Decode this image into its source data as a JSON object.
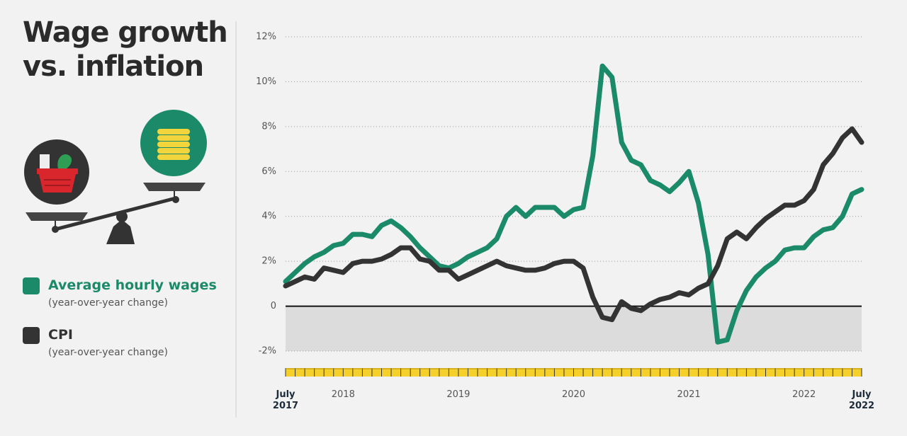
{
  "chart_data": {
    "type": "line",
    "title": "Wage growth vs. inflation",
    "categories": [
      "July 2017",
      null,
      null,
      null,
      null,
      null,
      "2018",
      null,
      null,
      null,
      null,
      null,
      null,
      null,
      null,
      null,
      null,
      null,
      "2019",
      null,
      null,
      null,
      null,
      null,
      null,
      null,
      null,
      null,
      null,
      null,
      "2020",
      null,
      null,
      null,
      null,
      null,
      null,
      null,
      null,
      null,
      null,
      null,
      "2021",
      null,
      null,
      null,
      null,
      null,
      null,
      null,
      null,
      null,
      null,
      null,
      "2022",
      null,
      null,
      null,
      null,
      null,
      "July 2022"
    ],
    "series": [
      {
        "name": "Average hourly wages",
        "description": "(year-over-year change)",
        "color": "#1b8a68",
        "values": [
          1.1,
          1.5,
          1.9,
          2.2,
          2.4,
          2.7,
          2.8,
          3.2,
          3.2,
          3.1,
          3.6,
          3.8,
          3.5,
          3.1,
          2.6,
          2.2,
          1.8,
          1.7,
          1.9,
          2.2,
          2.4,
          2.6,
          3.0,
          4.0,
          4.4,
          4.0,
          4.4,
          4.4,
          4.4,
          4.0,
          4.3,
          4.4,
          6.7,
          10.7,
          10.2,
          7.3,
          6.5,
          6.3,
          5.6,
          5.4,
          5.1,
          5.5,
          6.0,
          4.6,
          2.3,
          -1.6,
          -1.5,
          -0.2,
          0.7,
          1.3,
          1.7,
          2.0,
          2.5,
          2.6,
          2.6,
          3.1,
          3.4,
          3.5,
          4.0,
          5.0,
          5.2
        ]
      },
      {
        "name": "CPI",
        "description": "(year-over-year change)",
        "color": "#333333",
        "values": [
          0.9,
          1.1,
          1.3,
          1.2,
          1.7,
          1.6,
          1.5,
          1.9,
          2.0,
          2.0,
          2.1,
          2.3,
          2.6,
          2.6,
          2.1,
          2.0,
          1.6,
          1.6,
          1.2,
          1.4,
          1.6,
          1.8,
          2.0,
          1.8,
          1.7,
          1.6,
          1.6,
          1.7,
          1.9,
          2.0,
          2.0,
          1.7,
          0.4,
          -0.5,
          -0.6,
          0.2,
          -0.1,
          -0.2,
          0.1,
          0.3,
          0.4,
          0.6,
          0.5,
          0.8,
          1.0,
          1.8,
          3.0,
          3.3,
          3.0,
          3.5,
          3.9,
          4.2,
          4.5,
          4.5,
          4.7,
          5.2,
          6.3,
          6.8,
          7.5,
          7.9,
          7.3
        ]
      }
    ],
    "ylim": [
      -2,
      12
    ],
    "yticks": [
      {
        "value": -2,
        "label": "-2%"
      },
      0,
      {
        "value": 2,
        "label": "2%"
      },
      {
        "value": 4,
        "label": "4%"
      },
      {
        "value": 6,
        "label": "6%"
      },
      {
        "value": 8,
        "label": "8%"
      },
      {
        "value": 10,
        "label": "10%"
      },
      {
        "value": 12,
        "label": "12%"
      }
    ],
    "grid": true
  }
}
